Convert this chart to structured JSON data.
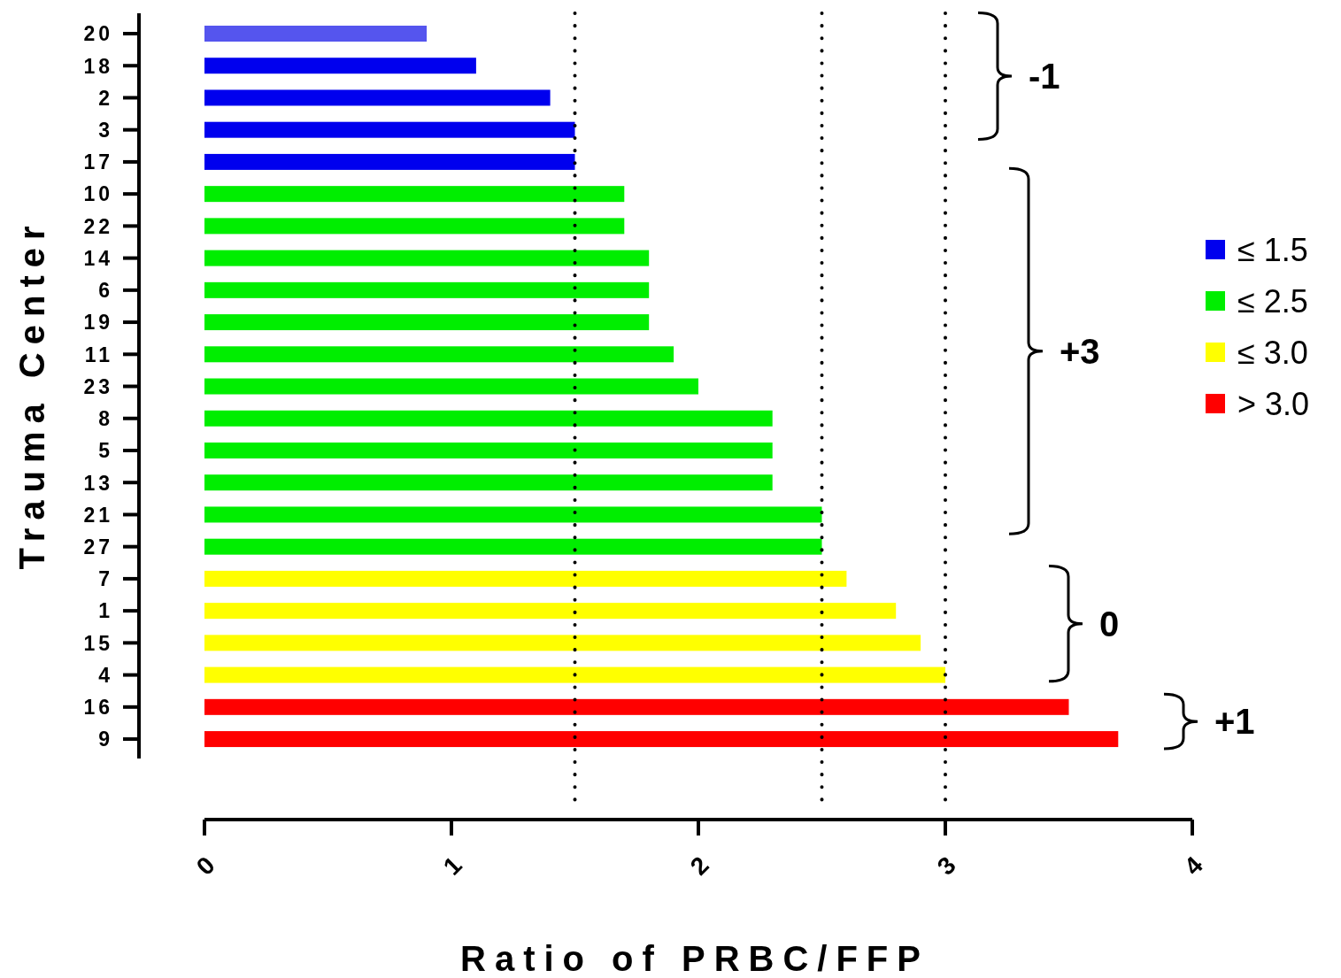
{
  "chart_data": {
    "type": "bar",
    "orientation": "horizontal",
    "xlabel": "Ratio of PRBC/FFP",
    "ylabel": "Trauma Center",
    "categories": [
      "20",
      "18",
      "2",
      "3",
      "17",
      "10",
      "22",
      "14",
      "6",
      "19",
      "11",
      "23",
      "8",
      "5",
      "13",
      "21",
      "27",
      "7",
      "1",
      "15",
      "4",
      "16",
      "9"
    ],
    "series": [
      {
        "name": "≤ 1.5",
        "color": "#0000ee",
        "colors": [
          "#5555ee",
          "#0000ee",
          "#0000ee",
          "#0000ee",
          "#0000ee",
          null,
          null,
          null,
          null,
          null,
          null,
          null,
          null,
          null,
          null,
          null,
          null,
          null,
          null,
          null,
          null,
          null,
          null
        ],
        "values": [
          0.9,
          1.1,
          1.4,
          1.5,
          1.5,
          null,
          null,
          null,
          null,
          null,
          null,
          null,
          null,
          null,
          null,
          null,
          null,
          null,
          null,
          null,
          null,
          null,
          null
        ]
      },
      {
        "name": "≤ 2.5",
        "color": "#00ee00",
        "values": [
          null,
          null,
          null,
          null,
          null,
          1.7,
          1.7,
          1.8,
          1.8,
          1.8,
          1.9,
          2.0,
          2.3,
          2.3,
          2.3,
          2.5,
          2.5,
          null,
          null,
          null,
          null,
          null,
          null
        ]
      },
      {
        "name": "≤ 3.0",
        "color": "#ffff00",
        "values": [
          null,
          null,
          null,
          null,
          null,
          null,
          null,
          null,
          null,
          null,
          null,
          null,
          null,
          null,
          null,
          null,
          null,
          2.6,
          2.8,
          2.9,
          3.0,
          null,
          null
        ]
      },
      {
        "name": "> 3.0",
        "color": "#ff0000",
        "values": [
          null,
          null,
          null,
          null,
          null,
          null,
          null,
          null,
          null,
          null,
          null,
          null,
          null,
          null,
          null,
          null,
          null,
          null,
          null,
          null,
          null,
          3.5,
          3.7
        ]
      }
    ],
    "xlim": [
      0,
      4
    ],
    "xticks": [
      0,
      1,
      2,
      3,
      4
    ],
    "legend": "right",
    "ref_lines": [
      {
        "axis": "x",
        "value": 1.5,
        "color": "#000000",
        "line_style": "dotted"
      },
      {
        "axis": "x",
        "value": 2.5,
        "color": "#000000",
        "line_style": "dotted"
      },
      {
        "axis": "x",
        "value": 3,
        "color": "#000000",
        "line_style": "dotted"
      }
    ],
    "annotations": [
      "-1",
      "+3",
      "0",
      "+1"
    ]
  }
}
